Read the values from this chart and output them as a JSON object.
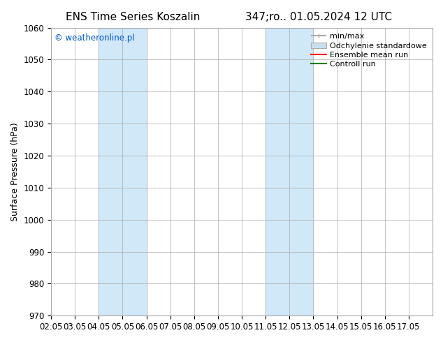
{
  "title_left": "ENS Time Series Koszalin",
  "title_right": "347;ro.. 01.05.2024 12 UTC",
  "ylabel": "Surface Pressure (hPa)",
  "watermark": "© weatheronline.pl",
  "watermark_color": "#0055cc",
  "xlim": [
    0,
    16
  ],
  "ylim": [
    970,
    1060
  ],
  "yticks": [
    970,
    980,
    990,
    1000,
    1010,
    1020,
    1030,
    1040,
    1050,
    1060
  ],
  "xtick_labels": [
    "02.05",
    "03.05",
    "04.05",
    "05.05",
    "06.05",
    "07.05",
    "08.05",
    "09.05",
    "10.05",
    "11.05",
    "12.05",
    "13.05",
    "14.05",
    "15.05",
    "16.05",
    "17.05"
  ],
  "xtick_positions": [
    0,
    1,
    2,
    3,
    4,
    5,
    6,
    7,
    8,
    9,
    10,
    11,
    12,
    13,
    14,
    15
  ],
  "shaded_regions": [
    {
      "xmin": 2,
      "xmax": 4,
      "color": "#d0e8f8"
    },
    {
      "xmin": 9,
      "xmax": 11,
      "color": "#d0e8f8"
    }
  ],
  "background_color": "#ffffff",
  "plot_bg_color": "#ffffff",
  "grid_color": "#aaaaaa",
  "legend_items": [
    {
      "label": "min/max",
      "color": "#aaaaaa",
      "lw": 1.5,
      "linestyle": "-",
      "type": "line_with_caps"
    },
    {
      "label": "Odchylenie standardowe",
      "color": "#c8dff0",
      "lw": 1.5,
      "linestyle": "-",
      "type": "filled_box"
    },
    {
      "label": "Ensemble mean run",
      "color": "#ff0000",
      "lw": 1.5,
      "linestyle": "-",
      "type": "line"
    },
    {
      "label": "Controll run",
      "color": "#008000",
      "lw": 1.5,
      "linestyle": "-",
      "type": "line"
    }
  ],
  "font_family": "DejaVu Sans",
  "title_fontsize": 11,
  "axis_label_fontsize": 9,
  "tick_fontsize": 8.5,
  "legend_fontsize": 8
}
